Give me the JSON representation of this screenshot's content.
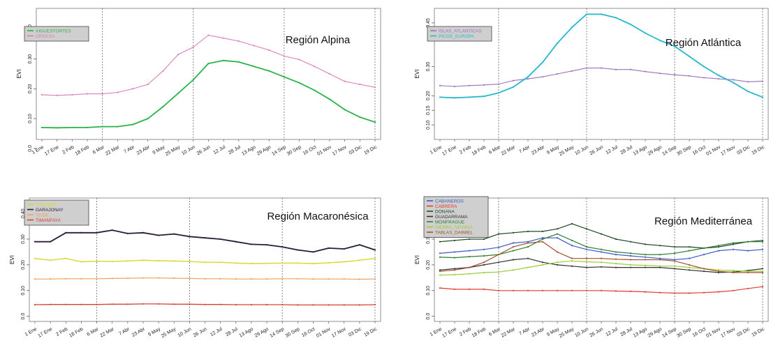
{
  "chart_data": [
    {
      "type": "line",
      "title": "Región Alpina",
      "ylabel": "EVI",
      "ylim": [
        0.03,
        0.47
      ],
      "yticks": [
        0.0,
        0.1,
        0.2,
        0.3,
        0.4
      ],
      "ytick_labels": [
        "0.0",
        "0.10",
        "0.20",
        "0.30",
        "0.40"
      ],
      "x": [
        "1 Ene",
        "17 Ene",
        "2 Feb",
        "18 Feb",
        "6 Mar",
        "22 Mar",
        "7 Abr",
        "23 Abr",
        "9 May",
        "25 May",
        "10 Jun",
        "26 Jun",
        "12 Jul",
        "28 Jul",
        "13 Ago",
        "29 Ago",
        "14 Sep",
        "30 Sep",
        "16 Oct",
        "01 Nov",
        "17 Nov",
        "03 Dic",
        "19 Dic"
      ],
      "vlines": [
        "6 Mar",
        "10 Jun",
        "14 Sep",
        "19 Dic"
      ],
      "legend": "top-left",
      "series": [
        {
          "name": "AIGUESTORTES",
          "color": "#2bb34a",
          "width": 1.8,
          "values": [
            0.07,
            0.069,
            0.07,
            0.07,
            0.073,
            0.073,
            0.08,
            0.1,
            0.14,
            0.185,
            0.23,
            0.285,
            0.295,
            0.29,
            0.275,
            0.26,
            0.24,
            0.22,
            0.195,
            0.165,
            0.13,
            0.105,
            0.088
          ]
        },
        {
          "name": "ORDESA",
          "color": "#d87fb8",
          "width": 1.1,
          "values": [
            0.18,
            0.178,
            0.18,
            0.183,
            0.183,
            0.188,
            0.2,
            0.215,
            0.26,
            0.315,
            0.34,
            0.38,
            0.37,
            0.36,
            0.345,
            0.33,
            0.31,
            0.298,
            0.275,
            0.25,
            0.225,
            0.215,
            0.205
          ]
        }
      ]
    },
    {
      "type": "line",
      "title": "Región Atlántica",
      "ylabel": "EVI",
      "ylim": [
        0.05,
        0.5
      ],
      "yticks": [
        0.1,
        0.15,
        0.2,
        0.3,
        0.45
      ],
      "ytick_labels": [
        "0.10",
        "0.15",
        "0.20",
        "0.30",
        "0.45"
      ],
      "x": [
        "1 Ene",
        "17 Ene",
        "2 Feb",
        "18 Feb",
        "6 Mar",
        "22 Mar",
        "7 Abr",
        "23 Abr",
        "9 May",
        "25 May",
        "10 Jun",
        "26 Jun",
        "12 Jul",
        "28 Jul",
        "13 Ago",
        "29 Ago",
        "14 Sep",
        "30 Sep",
        "16 Oct",
        "01 Nov",
        "17 Nov",
        "03 Dic",
        "19 Dic"
      ],
      "vlines": [
        "6 Mar",
        "10 Jun",
        "14 Sep",
        "19 Dic"
      ],
      "legend": "top-left",
      "series": [
        {
          "name": "ISLAS_ATLANTICAS",
          "color": "#9a72bb",
          "width": 1.1,
          "values": [
            0.235,
            0.232,
            0.235,
            0.237,
            0.24,
            0.252,
            0.258,
            0.265,
            0.275,
            0.285,
            0.295,
            0.295,
            0.29,
            0.29,
            0.283,
            0.277,
            0.272,
            0.268,
            0.262,
            0.258,
            0.255,
            0.248,
            0.25
          ]
        },
        {
          "name": "PICOS_EUROPA",
          "color": "#25b8cc",
          "width": 1.8,
          "values": [
            0.195,
            0.193,
            0.195,
            0.198,
            0.21,
            0.23,
            0.265,
            0.315,
            0.38,
            0.435,
            0.48,
            0.48,
            0.468,
            0.445,
            0.415,
            0.39,
            0.37,
            0.335,
            0.3,
            0.27,
            0.245,
            0.215,
            0.195
          ]
        }
      ]
    },
    {
      "type": "line",
      "title": "Región Macaronésica",
      "ylabel": "EVI",
      "ylim": [
        -0.02,
        0.46
      ],
      "yticks": [
        0.0,
        0.1,
        0.2,
        0.3,
        0.4
      ],
      "ytick_labels": [
        "0.0",
        "0.10",
        "0.20",
        "0.30",
        "0.40"
      ],
      "x": [
        "1 Ene",
        "17 Ene",
        "2 Feb",
        "18 Feb",
        "6 Mar",
        "22 Mar",
        "7 Abr",
        "23 Abr",
        "9 May",
        "25 May",
        "10 Jun",
        "26 Jun",
        "12 Jul",
        "28 Jul",
        "13 Ago",
        "29 Ago",
        "14 Sep",
        "30 Sep",
        "16 Oct",
        "01 Nov",
        "17 Nov",
        "03 Dic",
        "19 Dic"
      ],
      "vlines": [
        "6 Mar",
        "10 Jun",
        "14 Sep",
        "19 Dic"
      ],
      "legend": "top-left",
      "series": [
        {
          "name": "CALDERA",
          "color": "#d8d82a",
          "width": 1.4,
          "values": [
            0.225,
            0.218,
            0.225,
            0.212,
            0.214,
            0.213,
            0.215,
            0.218,
            0.216,
            0.215,
            0.213,
            0.21,
            0.21,
            0.207,
            0.205,
            0.206,
            0.207,
            0.207,
            0.205,
            0.208,
            0.212,
            0.218,
            0.225
          ]
        },
        {
          "name": "GARAJONAY",
          "color": "#2a1d35",
          "width": 1.8,
          "values": [
            0.29,
            0.29,
            0.325,
            0.325,
            0.325,
            0.335,
            0.322,
            0.325,
            0.315,
            0.32,
            0.31,
            0.305,
            0.3,
            0.29,
            0.28,
            0.278,
            0.27,
            0.258,
            0.25,
            0.265,
            0.262,
            0.278,
            0.258
          ]
        },
        {
          "name": "TEIDE",
          "color": "#f0a060",
          "width": 1.2,
          "values": [
            0.145,
            0.145,
            0.146,
            0.146,
            0.146,
            0.147,
            0.148,
            0.149,
            0.149,
            0.148,
            0.147,
            0.146,
            0.146,
            0.145,
            0.145,
            0.145,
            0.146,
            0.146,
            0.145,
            0.145,
            0.145,
            0.144,
            0.145
          ]
        },
        {
          "name": "TIMANFAYA",
          "color": "#d94030",
          "width": 1.3,
          "values": [
            0.045,
            0.046,
            0.046,
            0.046,
            0.046,
            0.047,
            0.047,
            0.048,
            0.048,
            0.047,
            0.047,
            0.046,
            0.046,
            0.045,
            0.045,
            0.045,
            0.045,
            0.044,
            0.044,
            0.044,
            0.044,
            0.044,
            0.045
          ]
        }
      ]
    },
    {
      "type": "line",
      "title": "Región Mediterránea",
      "ylabel": "EVI",
      "ylim": [
        -0.02,
        0.46
      ],
      "yticks": [
        0.0,
        0.1,
        0.2,
        0.3,
        0.4
      ],
      "ytick_labels": [
        "0.0",
        "0.10",
        "0.20",
        "0.30",
        "0.40"
      ],
      "x": [
        "1 Ene",
        "17 Ene",
        "2 Feb",
        "18 Feb",
        "6 Mar",
        "22 Mar",
        "7 Abr",
        "23 Abr",
        "9 May",
        "25 May",
        "10 Jun",
        "26 Jun",
        "12 Jul",
        "28 Jul",
        "13 Ago",
        "29 Ago",
        "14 Sep",
        "30 Sep",
        "16 Oct",
        "01 Nov",
        "17 Nov",
        "03 Dic",
        "19 Dic"
      ],
      "vlines": [
        "6 Mar",
        "10 Jun",
        "14 Sep",
        "19 Dic"
      ],
      "legend": "top-left",
      "series": [
        {
          "name": "CABANEROS",
          "color": "#3a5bc8",
          "width": 1.2,
          "values": [
            0.245,
            0.25,
            0.255,
            0.26,
            0.268,
            0.285,
            0.29,
            0.305,
            0.305,
            0.275,
            0.26,
            0.25,
            0.24,
            0.235,
            0.23,
            0.225,
            0.22,
            0.225,
            0.24,
            0.255,
            0.26,
            0.255,
            0.26
          ]
        },
        {
          "name": "CABRERA",
          "color": "#e33b30",
          "width": 1.2,
          "values": [
            0.11,
            0.105,
            0.105,
            0.105,
            0.1,
            0.1,
            0.1,
            0.1,
            0.1,
            0.1,
            0.1,
            0.1,
            0.098,
            0.097,
            0.095,
            0.092,
            0.09,
            0.09,
            0.092,
            0.095,
            0.1,
            0.108,
            0.115
          ]
        },
        {
          "name": "DONANA",
          "color": "#1f4a25",
          "width": 1.2,
          "values": [
            0.29,
            0.295,
            0.3,
            0.3,
            0.32,
            0.325,
            0.33,
            0.33,
            0.34,
            0.36,
            0.34,
            0.32,
            0.3,
            0.29,
            0.28,
            0.275,
            0.27,
            0.27,
            0.265,
            0.27,
            0.28,
            0.29,
            0.295
          ]
        },
        {
          "name": "GUADARRAMA",
          "color": "#333333",
          "width": 1.2,
          "values": [
            0.18,
            0.185,
            0.19,
            0.2,
            0.21,
            0.22,
            0.225,
            0.21,
            0.2,
            0.195,
            0.19,
            0.192,
            0.19,
            0.19,
            0.19,
            0.19,
            0.185,
            0.18,
            0.175,
            0.17,
            0.172,
            0.178,
            0.185
          ]
        },
        {
          "name": "MONFRAGUE",
          "color": "#2e7d32",
          "width": 1.2,
          "values": [
            0.23,
            0.228,
            0.232,
            0.235,
            0.24,
            0.255,
            0.27,
            0.3,
            0.32,
            0.295,
            0.27,
            0.26,
            0.25,
            0.245,
            0.24,
            0.24,
            0.245,
            0.255,
            0.265,
            0.275,
            0.285,
            0.29,
            0.29
          ]
        },
        {
          "name": "SIERRA_NEVADA",
          "color": "#9acd32",
          "width": 1.2,
          "values": [
            0.16,
            0.162,
            0.165,
            0.17,
            0.172,
            0.18,
            0.19,
            0.2,
            0.21,
            0.215,
            0.212,
            0.21,
            0.205,
            0.2,
            0.198,
            0.195,
            0.195,
            0.19,
            0.185,
            0.18,
            0.178,
            0.175,
            0.175
          ]
        },
        {
          "name": "TABLAS_DAIMIEL",
          "color": "#a0522d",
          "width": 1.2,
          "values": [
            0.175,
            0.18,
            0.19,
            0.21,
            0.24,
            0.27,
            0.285,
            0.29,
            0.25,
            0.225,
            0.225,
            0.225,
            0.222,
            0.22,
            0.22,
            0.22,
            0.215,
            0.2,
            0.185,
            0.175,
            0.17,
            0.17,
            0.17
          ]
        }
      ]
    }
  ]
}
